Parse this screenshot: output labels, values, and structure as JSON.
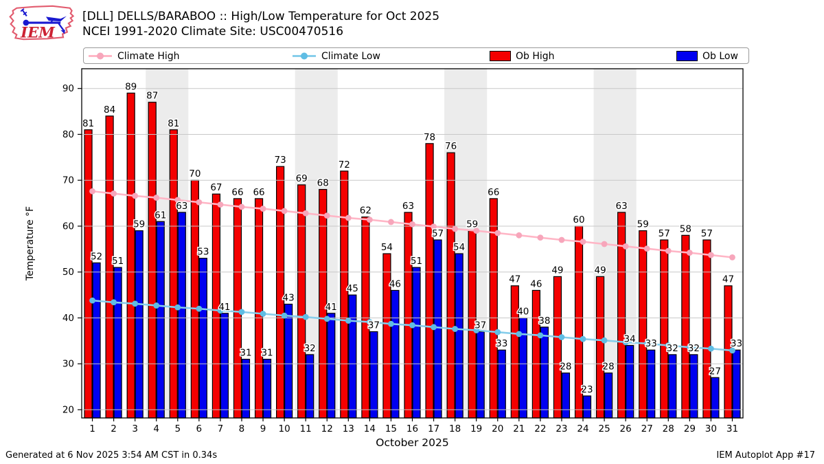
{
  "header": {
    "logo_text": "IEM",
    "title_line1": "[DLL] DELLS/BARABOO :: High/Low Temperature for Oct 2025",
    "title_line2": "NCEI 1991-2020 Climate Site: USC00470516"
  },
  "legend": {
    "items": [
      {
        "label": "Climate High",
        "type": "line",
        "color": "#ffb6c6",
        "marker": "#f7a6bb"
      },
      {
        "label": "Climate Low",
        "type": "line",
        "color": "#87ceeb",
        "marker": "#5fbde4"
      },
      {
        "label": "Ob High",
        "type": "patch",
        "color": "#f40000"
      },
      {
        "label": "Ob Low",
        "type": "patch",
        "color": "#0000f0"
      }
    ]
  },
  "chart_data": {
    "type": "bar",
    "title": "[DLL] DELLS/BARABOO :: High/Low Temperature for Oct 2025",
    "subtitle": "NCEI 1991-2020 Climate Site: USC00470516",
    "xlabel": "October 2025",
    "ylabel": "Temperature °F",
    "x": [
      1,
      2,
      3,
      4,
      5,
      6,
      7,
      8,
      9,
      10,
      11,
      12,
      13,
      14,
      15,
      16,
      17,
      18,
      19,
      20,
      21,
      22,
      23,
      24,
      25,
      26,
      27,
      28,
      29,
      30,
      31
    ],
    "yticks": [
      20,
      30,
      40,
      50,
      60,
      70,
      80,
      90
    ],
    "ylim": [
      18.2,
      94.3
    ],
    "grid": true,
    "legend_position": "top",
    "weekend_bands": [
      [
        4,
        5
      ],
      [
        11,
        12
      ],
      [
        18,
        19
      ],
      [
        25,
        26
      ]
    ],
    "series": [
      {
        "name": "Ob High",
        "type": "bar",
        "color": "#f40000",
        "values": [
          81,
          84,
          89,
          87,
          81,
          70,
          67,
          66,
          66,
          73,
          69,
          68,
          72,
          62,
          54,
          63,
          78,
          76,
          59,
          66,
          47,
          46,
          49,
          60,
          49,
          63,
          59,
          57,
          58,
          57,
          47
        ]
      },
      {
        "name": "Ob Low",
        "type": "bar",
        "color": "#0000f0",
        "values": [
          52,
          51,
          59,
          61,
          63,
          53,
          41,
          31,
          31,
          43,
          32,
          41,
          45,
          37,
          46,
          51,
          57,
          54,
          37,
          33,
          40,
          38,
          28,
          23,
          28,
          34,
          33,
          32,
          32,
          27,
          33
        ]
      },
      {
        "name": "Climate High",
        "type": "line",
        "color": "#ffb6c6",
        "marker_color": "#f7a6bb",
        "values": [
          67.6,
          67.1,
          66.6,
          66.2,
          65.7,
          65.2,
          64.7,
          64.2,
          63.8,
          63.3,
          62.8,
          62.3,
          61.8,
          61.4,
          60.9,
          60.4,
          59.9,
          59.4,
          59.0,
          58.5,
          58.0,
          57.5,
          57.0,
          56.6,
          56.1,
          55.6,
          55.1,
          54.6,
          54.2,
          53.7,
          53.2
        ]
      },
      {
        "name": "Climate Low",
        "type": "line",
        "color": "#87ceeb",
        "marker_color": "#5fbde4",
        "values": [
          43.8,
          43.4,
          43.1,
          42.7,
          42.3,
          42.0,
          41.6,
          41.3,
          40.9,
          40.5,
          40.2,
          39.8,
          39.4,
          39.1,
          38.7,
          38.4,
          38.0,
          37.6,
          37.3,
          36.9,
          36.5,
          36.2,
          35.8,
          35.4,
          35.1,
          34.7,
          34.4,
          34.0,
          33.6,
          33.3,
          32.9
        ]
      }
    ]
  },
  "footer": {
    "left": "Generated at 6 Nov 2025 3:54 AM CST in 0.34s",
    "right": "IEM Autoplot App #17"
  }
}
